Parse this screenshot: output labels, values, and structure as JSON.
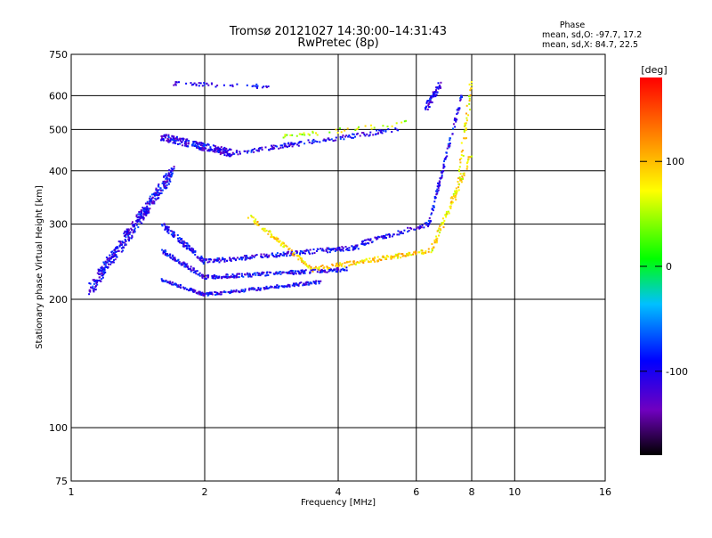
{
  "chart_data": {
    "type": "scatter",
    "title": "Tromsø 20121027 14:30:00–14:31:43",
    "subtitle": "RwPretec (8p)",
    "xlabel": "Frequency [MHz]",
    "ylabel": "Stationary phase Virtual Height [km]",
    "x_scale": "log",
    "y_scale": "log",
    "xlim": [
      1,
      16
    ],
    "ylim": [
      75,
      750
    ],
    "x_ticks": [
      1,
      2,
      4,
      6,
      8,
      10,
      16
    ],
    "x_tick_labels": [
      "1",
      "2",
      "4",
      "6",
      "8",
      "10",
      "16"
    ],
    "y_ticks": [
      75,
      100,
      200,
      300,
      400,
      500,
      600,
      750
    ],
    "y_tick_labels": [
      "75",
      "100",
      "200",
      "300",
      "400",
      "500",
      "600",
      "750"
    ],
    "grid": true,
    "phase_info": {
      "heading": "Phase",
      "line_o": "mean, sd,O: -97.7, 17.2",
      "line_x": "mean, sd,X:  84.7, 22.5"
    },
    "colorbar": {
      "label": "[deg]",
      "range": [
        -180,
        180
      ],
      "ticks": [
        100,
        0,
        -100
      ],
      "tick_labels": [
        "100",
        "0",
        "-100"
      ]
    },
    "traces": [
      {
        "x": [
          1.1,
          1.7
        ],
        "y": [
          210,
          400
        ],
        "phase": -100,
        "spread": 0.035,
        "count": 420
      },
      {
        "x": [
          1.6,
          2.0
        ],
        "y": [
          300,
          245
        ],
        "phase": -100,
        "spread": 0.015,
        "count": 110
      },
      {
        "x": [
          2.0,
          4.5
        ],
        "y": [
          245,
          265
        ],
        "phase": -100,
        "spread": 0.012,
        "count": 220
      },
      {
        "x": [
          1.6,
          2.0
        ],
        "y": [
          260,
          225
        ],
        "phase": -100,
        "spread": 0.012,
        "count": 90
      },
      {
        "x": [
          2.0,
          4.2
        ],
        "y": [
          225,
          235
        ],
        "phase": -100,
        "spread": 0.01,
        "count": 200
      },
      {
        "x": [
          1.6,
          2.0
        ],
        "y": [
          222,
          205
        ],
        "phase": -100,
        "spread": 0.008,
        "count": 90
      },
      {
        "x": [
          2.0,
          3.7
        ],
        "y": [
          205,
          220
        ],
        "phase": -100,
        "spread": 0.008,
        "count": 160
      },
      {
        "x": [
          1.6,
          2.3
        ],
        "y": [
          480,
          440
        ],
        "phase": -105,
        "spread": 0.02,
        "count": 230
      },
      {
        "x": [
          2.3,
          5.5
        ],
        "y": [
          440,
          500
        ],
        "phase": -100,
        "spread": 0.012,
        "count": 150
      },
      {
        "x": [
          3.0,
          5.8
        ],
        "y": [
          480,
          520
        ],
        "phase": 60,
        "spread": 0.012,
        "count": 40
      },
      {
        "x": [
          2.5,
          3.5
        ],
        "y": [
          315,
          235
        ],
        "phase": 90,
        "spread": 0.012,
        "count": 90
      },
      {
        "x": [
          3.5,
          6.5
        ],
        "y": [
          235,
          260
        ],
        "phase": 90,
        "spread": 0.012,
        "count": 150
      },
      {
        "x": [
          6.5,
          8.0
        ],
        "y": [
          260,
          440
        ],
        "phase": 80,
        "spread": 0.02,
        "count": 90
      },
      {
        "x": [
          4.5,
          6.4
        ],
        "y": [
          270,
          300
        ],
        "phase": -100,
        "spread": 0.012,
        "count": 80
      },
      {
        "x": [
          6.4,
          7.6
        ],
        "y": [
          300,
          600
        ],
        "phase": -100,
        "spread": 0.015,
        "count": 110
      },
      {
        "x": [
          6.3,
          6.8
        ],
        "y": [
          560,
          640
        ],
        "phase": -105,
        "spread": 0.02,
        "count": 60
      },
      {
        "x": [
          7.4,
          8.0
        ],
        "y": [
          350,
          650
        ],
        "phase": 80,
        "spread": 0.03,
        "count": 50
      },
      {
        "x": [
          1.7,
          2.8
        ],
        "y": [
          640,
          630
        ],
        "phase": -100,
        "spread": 0.01,
        "count": 45
      }
    ]
  }
}
